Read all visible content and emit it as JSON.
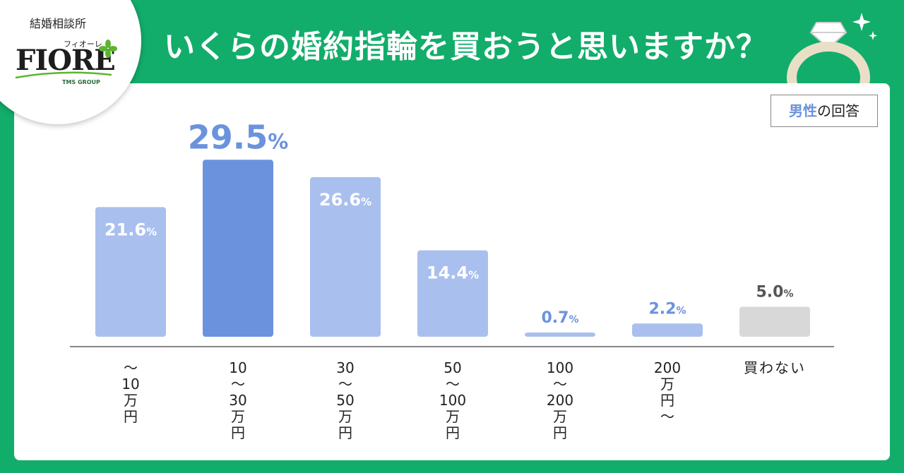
{
  "header": {
    "title": "いくらの婚約指輪を買おうと思いますか？"
  },
  "logo": {
    "tagline": "結婚相談所",
    "kana": "フィオーレ",
    "brand": "FIORE",
    "group": "TMS GROUP"
  },
  "legend": {
    "key": "男性",
    "rest": "の回答"
  },
  "colors": {
    "background": "#12ad6b",
    "bar": "#a9bfee",
    "bar_highlight": "#6b93dd",
    "bar_none": "#d8d8d8",
    "label_blue": "#6b93dd",
    "label_gray": "#555555"
  },
  "chart_data": {
    "type": "bar",
    "unit": "%",
    "categories": [
      [
        "～",
        "10",
        "万",
        "円"
      ],
      [
        "10",
        "～",
        "30",
        "万",
        "円"
      ],
      [
        "30",
        "～",
        "50",
        "万",
        "円"
      ],
      [
        "50",
        "～",
        "100",
        "万",
        "円"
      ],
      [
        "100",
        "～",
        "200",
        "万",
        "円"
      ],
      [
        "200",
        "万",
        "円",
        "～"
      ],
      [
        "買わない"
      ]
    ],
    "values": [
      21.6,
      29.5,
      26.6,
      14.4,
      0.7,
      2.2,
      5.0
    ],
    "value_labels": [
      "21.6",
      "29.5",
      "26.6",
      "14.4",
      "0.7",
      "2.2",
      "5.0"
    ],
    "highlight_index": 1,
    "none_index": 6
  }
}
